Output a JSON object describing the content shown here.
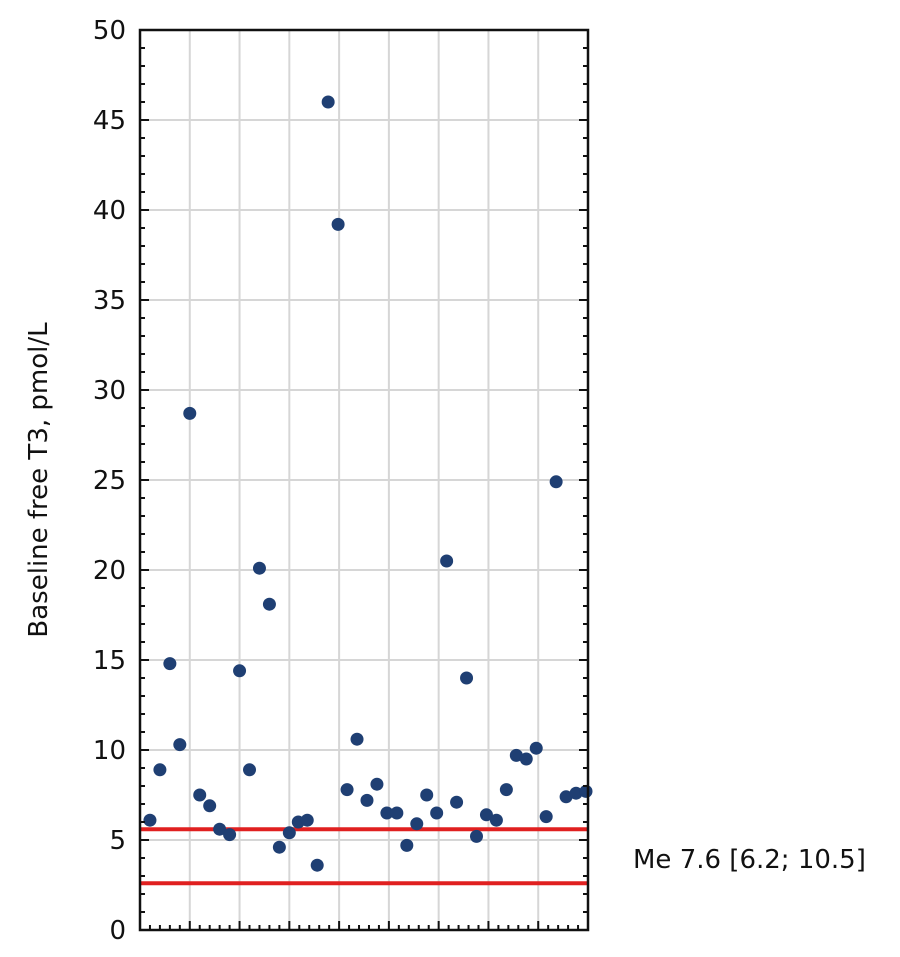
{
  "chart_data": {
    "type": "scatter",
    "title": "",
    "xlabel": "",
    "ylabel": "Baseline free T3, pmol/L",
    "ylim": [
      0,
      50
    ],
    "xlim": [
      0,
      45
    ],
    "yticks": [
      0,
      5,
      10,
      15,
      20,
      25,
      30,
      35,
      40,
      45,
      50
    ],
    "grid": true,
    "point_color": "#1f3f73",
    "reference_line_color": "#e02020",
    "reference_lines": [
      5.6,
      2.6
    ],
    "annotation": "Me 7.6 [6.2; 10.5]",
    "series": [
      {
        "x": [
          1,
          2,
          3,
          4,
          5,
          6,
          7,
          8,
          9,
          10,
          11,
          12,
          13,
          14,
          15,
          15.9,
          16.8,
          17.8,
          18.9,
          19.9,
          20.8,
          21.8,
          22.8,
          23.8,
          24.8,
          25.8,
          26.8,
          27.8,
          28.8,
          29.8,
          30.8,
          31.8,
          32.8,
          33.8,
          34.8,
          35.8,
          36.8,
          37.8,
          38.8,
          39.8,
          40.8,
          41.8,
          42.8,
          43.8,
          44.8
        ],
        "y": [
          6.1,
          8.9,
          14.8,
          10.3,
          28.7,
          7.5,
          6.9,
          5.6,
          5.3,
          14.4,
          8.9,
          20.1,
          18.1,
          4.6,
          5.4,
          6.0,
          6.1,
          3.6,
          46.0,
          39.2,
          7.8,
          10.6,
          7.2,
          8.1,
          6.5,
          6.5,
          4.7,
          5.9,
          7.5,
          6.5,
          20.5,
          7.1,
          14.0,
          5.2,
          6.4,
          6.1,
          7.8,
          9.7,
          9.5,
          10.1,
          6.3,
          24.9,
          7.4,
          7.6,
          7.7
        ]
      }
    ]
  }
}
